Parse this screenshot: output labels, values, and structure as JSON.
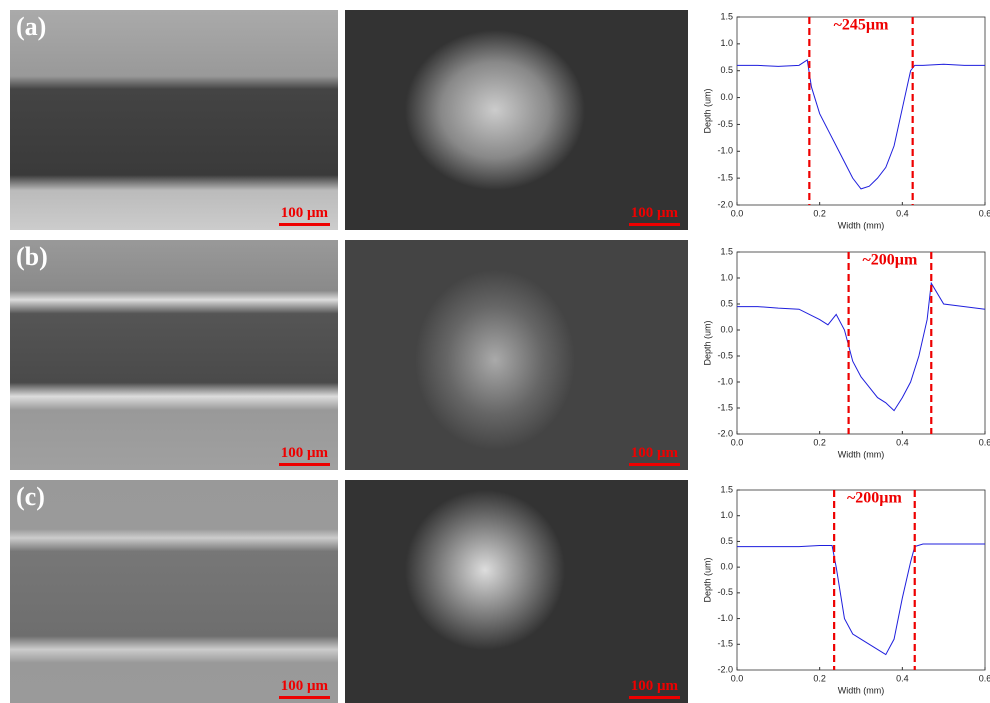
{
  "panels": [
    {
      "label": "(a)",
      "scale_bars": [
        "100 μm",
        "100 μm"
      ]
    },
    {
      "label": "(b)",
      "scale_bars": [
        "100 μm",
        "100 μm"
      ]
    },
    {
      "label": "(c)",
      "scale_bars": [
        "100 μm",
        "100 μm"
      ]
    }
  ],
  "chart_data": [
    {
      "type": "line",
      "xlabel": "Width (mm)",
      "ylabel": "Depth (um)",
      "color": "#1f1fdd",
      "x": [
        0,
        0.05,
        0.1,
        0.15,
        0.17,
        0.18,
        0.2,
        0.22,
        0.24,
        0.26,
        0.28,
        0.3,
        0.32,
        0.34,
        0.36,
        0.38,
        0.4,
        0.42,
        0.43,
        0.45,
        0.5,
        0.55,
        0.6
      ],
      "values": [
        0.6,
        0.6,
        0.58,
        0.6,
        0.7,
        0.2,
        -0.3,
        -0.6,
        -0.9,
        -1.2,
        -1.5,
        -1.7,
        -1.65,
        -1.5,
        -1.3,
        -0.9,
        -0.2,
        0.5,
        0.6,
        0.6,
        0.62,
        0.6,
        0.6
      ],
      "markers": [
        0.175,
        0.425
      ],
      "annotation": "~245µm",
      "xlim": [
        0,
        0.6
      ],
      "ylim": [
        -2,
        1.5
      ],
      "xticks": [
        {
          "value": 0,
          "label": "0.0"
        },
        0.2,
        0.4,
        0.6
      ],
      "yticks": [
        {
          "value": -2,
          "label": "-2.0"
        },
        -1.5,
        {
          "value": -1,
          "label": "-1.0"
        },
        -0.5,
        {
          "value": 0,
          "label": "0.0"
        },
        0.5,
        {
          "value": 1,
          "label": "1.0"
        },
        1.5
      ]
    },
    {
      "type": "line",
      "xlabel": "Width (mm)",
      "ylabel": "Depth (um)",
      "color": "#1f1fdd",
      "x": [
        0,
        0.05,
        0.1,
        0.15,
        0.2,
        0.22,
        0.24,
        0.26,
        0.28,
        0.3,
        0.32,
        0.34,
        0.36,
        0.38,
        0.4,
        0.42,
        0.44,
        0.46,
        0.47,
        0.5,
        0.55,
        0.6
      ],
      "values": [
        0.45,
        0.45,
        0.42,
        0.4,
        0.2,
        0.1,
        0.3,
        0,
        -0.6,
        -0.9,
        -1.1,
        -1.3,
        -1.4,
        -1.55,
        -1.3,
        -1,
        -0.5,
        0.2,
        0.9,
        0.5,
        0.45,
        0.4
      ],
      "markers": [
        0.27,
        0.47
      ],
      "annotation": "~200µm",
      "xlim": [
        0,
        0.6
      ],
      "ylim": [
        -2,
        1.5
      ],
      "xticks": [
        {
          "value": 0,
          "label": "0.0"
        },
        0.2,
        0.4,
        0.6
      ],
      "yticks": [
        {
          "value": -2,
          "label": "-2.0"
        },
        -1.5,
        {
          "value": -1,
          "label": "-1.0"
        },
        -0.5,
        {
          "value": 0,
          "label": "0.0"
        },
        0.5,
        {
          "value": 1,
          "label": "1.0"
        },
        1.5
      ]
    },
    {
      "type": "line",
      "xlabel": "Width (mm)",
      "ylabel": "Depth (um)",
      "color": "#1f1fdd",
      "x": [
        0,
        0.05,
        0.1,
        0.15,
        0.2,
        0.23,
        0.24,
        0.26,
        0.28,
        0.3,
        0.32,
        0.34,
        0.36,
        0.38,
        0.4,
        0.42,
        0.43,
        0.45,
        0.5,
        0.55,
        0.6
      ],
      "values": [
        0.4,
        0.4,
        0.4,
        0.4,
        0.42,
        0.42,
        0,
        -1,
        -1.3,
        -1.4,
        -1.5,
        -1.6,
        -1.7,
        -1.4,
        -0.6,
        0.1,
        0.4,
        0.45,
        0.45,
        0.45,
        0.45
      ],
      "markers": [
        0.235,
        0.43
      ],
      "annotation": "~200µm",
      "xlim": [
        0,
        0.6
      ],
      "ylim": [
        -2,
        1.5
      ],
      "xticks": [
        {
          "value": 0,
          "label": "0.0"
        },
        0.2,
        0.4,
        0.6
      ],
      "yticks": [
        {
          "value": -2,
          "label": "-2.0"
        },
        -1.5,
        {
          "value": -1,
          "label": "-1.0"
        },
        -0.5,
        {
          "value": 0,
          "label": "0.0"
        },
        0.5,
        {
          "value": 1,
          "label": "1.0"
        },
        1.5
      ]
    }
  ]
}
